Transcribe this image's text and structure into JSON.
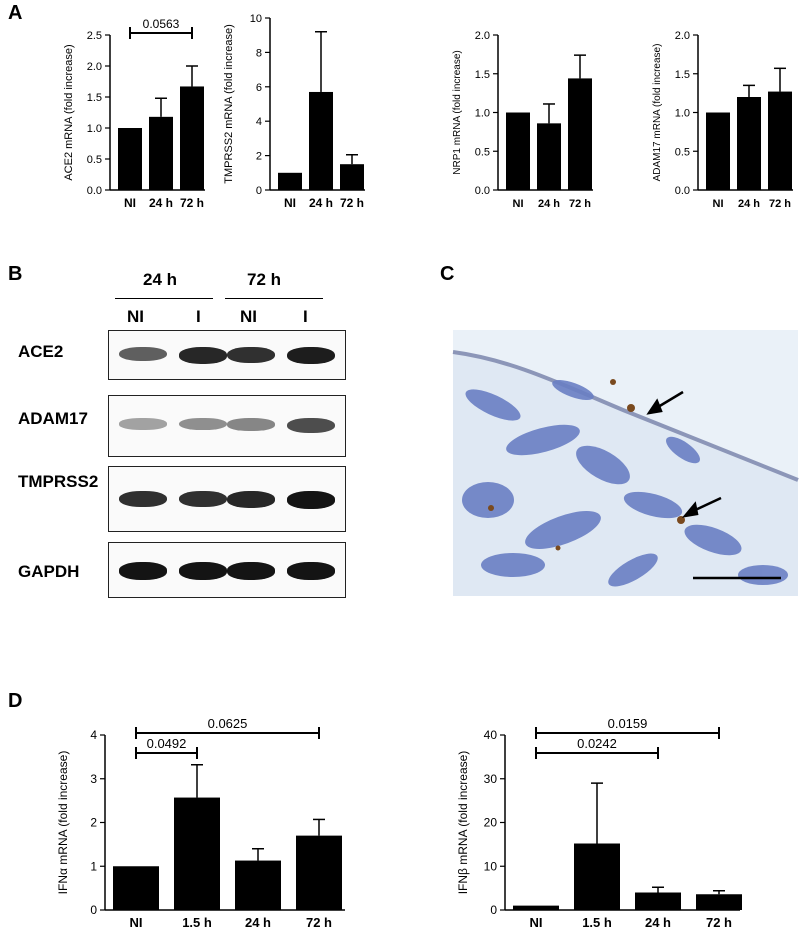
{
  "panels": {
    "A": "A",
    "B": "B",
    "C": "C",
    "D": "D"
  },
  "chart_data": [
    {
      "type": "bar",
      "id": "ace2",
      "categories": [
        "NI",
        "24 h",
        "72 h"
      ],
      "values": [
        1.0,
        1.18,
        1.67
      ],
      "errors": [
        0,
        0.3,
        0.33
      ],
      "ylabel": "ACE2 mRNA (fold increase)",
      "ylim": [
        0,
        2.5
      ],
      "yticks": [
        0.0,
        0.5,
        1.0,
        1.5,
        2.0,
        2.5
      ],
      "tick_labels": [
        "0.0",
        "0.5",
        "1.0",
        "1.5",
        "2.0",
        "2.5"
      ],
      "brackets": [
        {
          "from": 0,
          "to": 2,
          "label": "0.0563"
        }
      ]
    },
    {
      "type": "bar",
      "id": "tmprss2",
      "categories": [
        "NI",
        "24 h",
        "72 h"
      ],
      "values": [
        1.0,
        5.7,
        1.5
      ],
      "errors": [
        0,
        3.5,
        0.55
      ],
      "ylabel": "TMPRSS2 mRNA (fold increase)",
      "ylim": [
        0,
        10
      ],
      "yticks": [
        0,
        2,
        4,
        6,
        8,
        10
      ],
      "tick_labels": [
        "0",
        "2",
        "4",
        "6",
        "8",
        "10"
      ],
      "brackets": []
    },
    {
      "type": "bar",
      "id": "nrp1",
      "categories": [
        "NI",
        "24 h",
        "72 h"
      ],
      "values": [
        1.0,
        0.86,
        1.44
      ],
      "errors": [
        0,
        0.25,
        0.3
      ],
      "ylabel": "NRP1 mRNA (fold increase)",
      "ylim": [
        0,
        2.0
      ],
      "yticks": [
        0.0,
        0.5,
        1.0,
        1.5,
        2.0
      ],
      "tick_labels": [
        "0.0",
        "0.5",
        "1.0",
        "1.5",
        "2.0"
      ],
      "brackets": []
    },
    {
      "type": "bar",
      "id": "adam17",
      "categories": [
        "NI",
        "24 h",
        "72 h"
      ],
      "values": [
        1.0,
        1.2,
        1.27
      ],
      "errors": [
        0,
        0.15,
        0.3
      ],
      "ylabel": "ADAM17 mRNA (fold increase)",
      "ylim": [
        0,
        2.0
      ],
      "yticks": [
        0.0,
        0.5,
        1.0,
        1.5,
        2.0
      ],
      "tick_labels": [
        "0.0",
        "0.5",
        "1.0",
        "1.5",
        "2.0"
      ],
      "brackets": []
    },
    {
      "type": "bar",
      "id": "ifna",
      "categories": [
        "NI",
        "1.5 h",
        "24 h",
        "72 h"
      ],
      "values": [
        1.0,
        2.57,
        1.13,
        1.7
      ],
      "errors": [
        0,
        0.75,
        0.27,
        0.37
      ],
      "ylabel": "IFNα mRNA (fold increase)",
      "ylim": [
        0,
        4
      ],
      "yticks": [
        0,
        1,
        2,
        3,
        4
      ],
      "tick_labels": [
        "0",
        "1",
        "2",
        "3",
        "4"
      ],
      "brackets": [
        {
          "from": 0,
          "to": 1,
          "label": "0.0492"
        },
        {
          "from": 0,
          "to": 3,
          "label": "0.0625"
        }
      ]
    },
    {
      "type": "bar",
      "id": "ifnb",
      "categories": [
        "NI",
        "1.5 h",
        "24 h",
        "72 h"
      ],
      "values": [
        1.0,
        15.2,
        4.0,
        3.6
      ],
      "errors": [
        0,
        13.8,
        1.2,
        0.8
      ],
      "ylabel": "IFNβ mRNA (fold increase)",
      "ylim": [
        0,
        40
      ],
      "yticks": [
        0,
        10,
        20,
        30,
        40
      ],
      "tick_labels": [
        "0",
        "10",
        "20",
        "30",
        "40"
      ],
      "brackets": [
        {
          "from": 0,
          "to": 2,
          "label": "0.0242"
        },
        {
          "from": 0,
          "to": 3,
          "label": "0.0159"
        }
      ]
    }
  ],
  "blot": {
    "time_headers": [
      "24 h",
      "72 h"
    ],
    "lane_labels": [
      "NI",
      "I",
      "NI",
      "I"
    ],
    "proteins": [
      "ACE2",
      "ADAM17",
      "TMPRSS2",
      "GAPDH"
    ],
    "intensities": {
      "ACE2": [
        0.55,
        0.85,
        0.8,
        0.9
      ],
      "ADAM17": [
        0.2,
        0.3,
        0.35,
        0.65
      ],
      "TMPRSS2": [
        0.8,
        0.8,
        0.85,
        0.95
      ],
      "GAPDH": [
        0.95,
        0.95,
        0.95,
        0.95
      ]
    }
  },
  "colors": {
    "bar": "#000000",
    "tissue": "#6a7fc4",
    "background": "#eaf1f8",
    "stain": "#7a4a1f"
  }
}
